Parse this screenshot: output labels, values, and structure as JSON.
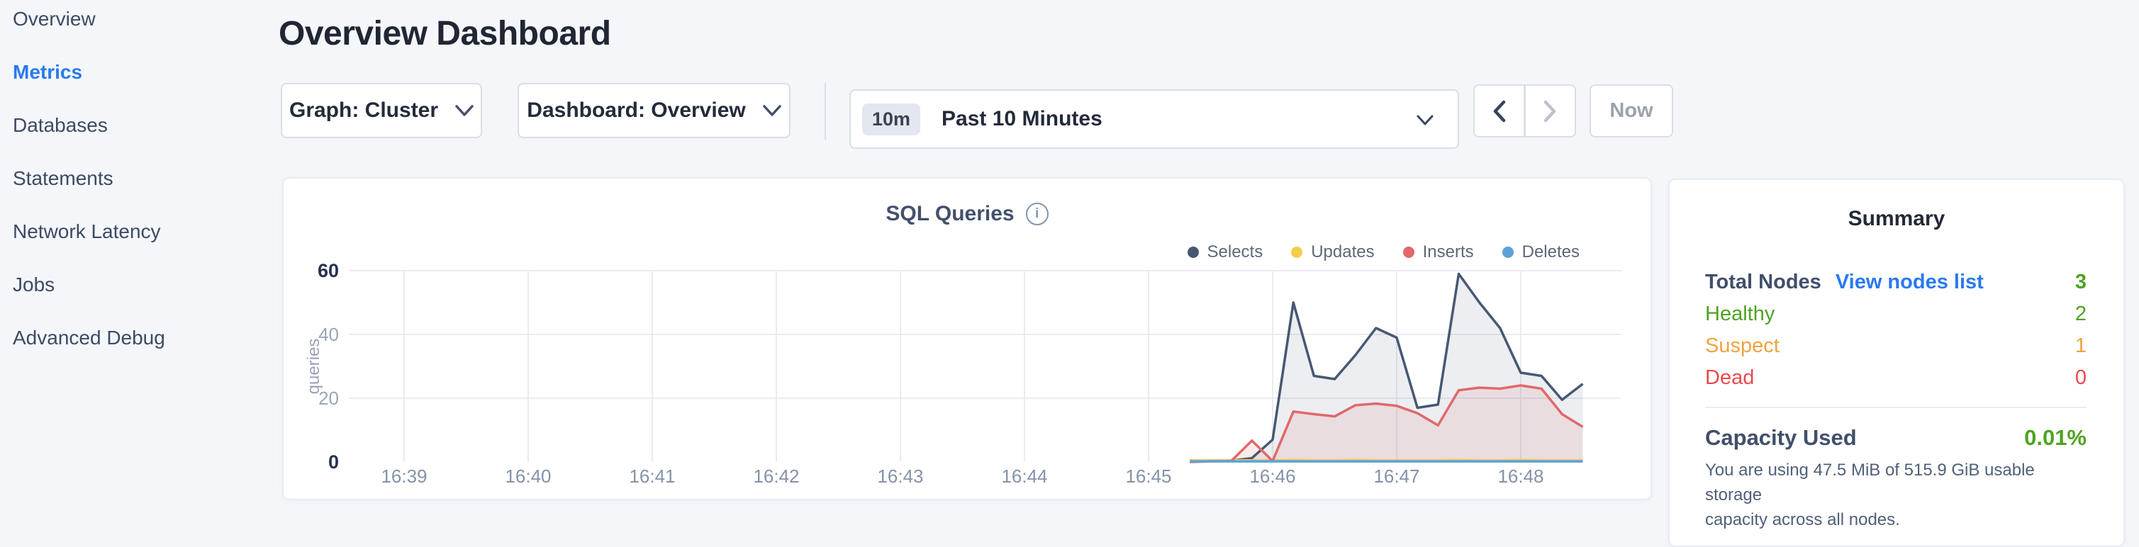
{
  "sidebar": {
    "items": [
      {
        "label": "Overview",
        "active": false
      },
      {
        "label": "Metrics",
        "active": true
      },
      {
        "label": "Databases",
        "active": false
      },
      {
        "label": "Statements",
        "active": false
      },
      {
        "label": "Network Latency",
        "active": false
      },
      {
        "label": "Jobs",
        "active": false
      },
      {
        "label": "Advanced Debug",
        "active": false
      }
    ]
  },
  "header": {
    "title": "Overview Dashboard"
  },
  "toolbar": {
    "graph_dropdown": {
      "label": "Graph: Cluster"
    },
    "dashboard_dropdown": {
      "label": "Dashboard: Overview"
    },
    "time_selector": {
      "badge": "10m",
      "label": "Past 10 Minutes"
    },
    "now_label": "Now"
  },
  "icons": {
    "dropdown": "chevron-down",
    "prev": "chevron-left",
    "next": "chevron-right",
    "info_glyph": "i"
  },
  "chart_data": {
    "type": "area",
    "title": "SQL Queries",
    "ylabel": "queries",
    "ylim": [
      0,
      60
    ],
    "y_ticks": [
      0,
      20,
      40,
      60
    ],
    "grid": true,
    "legend_position": "top-right",
    "x_ticks": [
      {
        "minute": 39,
        "label": "16:39"
      },
      {
        "minute": 40,
        "label": "16:40"
      },
      {
        "minute": 41,
        "label": "16:41"
      },
      {
        "minute": 42,
        "label": "16:42"
      },
      {
        "minute": 43,
        "label": "16:43"
      },
      {
        "minute": 44,
        "label": "16:44"
      },
      {
        "minute": 45,
        "label": "16:45"
      },
      {
        "minute": 46,
        "label": "16:46"
      },
      {
        "minute": 47,
        "label": "16:47"
      },
      {
        "minute": 48,
        "label": "16:48"
      }
    ],
    "x_minutes": [
      45.333,
      45.5,
      45.667,
      45.833,
      46,
      46.167,
      46.333,
      46.5,
      46.667,
      46.833,
      47,
      47.167,
      47.333,
      47.5,
      47.667,
      47.833,
      48,
      48.167,
      48.333,
      48.5
    ],
    "series": [
      {
        "name": "Selects",
        "color": "#475872",
        "fill": "rgba(71,88,114,0.10)",
        "values": [
          0.3,
          0.3,
          0.4,
          1.2,
          7,
          50,
          27,
          26,
          33.5,
          42,
          39,
          17,
          18,
          59,
          50,
          42,
          28,
          27,
          19.5,
          24.5
        ]
      },
      {
        "name": "Updates",
        "color": "#f3cd4b",
        "fill": "none",
        "values": [
          0.5,
          0.5,
          0.5,
          0.5,
          0.5,
          0.6,
          0.5,
          0.5,
          0.6,
          0.5,
          0.5,
          0.5,
          0.5,
          0.6,
          0.5,
          0.5,
          0.6,
          0.5,
          0.5,
          0.5
        ]
      },
      {
        "name": "Inserts",
        "color": "#e0696b",
        "fill": "rgba(224,105,107,0.13)",
        "values": [
          0,
          0.2,
          0.3,
          6.7,
          0.3,
          15.8,
          15,
          14.3,
          17.8,
          18.3,
          17.6,
          15.3,
          11.5,
          22.5,
          23.3,
          23,
          24,
          23,
          15,
          11
        ]
      },
      {
        "name": "Deletes",
        "color": "#5aa3d9",
        "fill": "none",
        "values": [
          0.2,
          0.2,
          0.2,
          0.2,
          0.2,
          0.2,
          0.2,
          0.2,
          0.2,
          0.2,
          0.2,
          0.2,
          0.2,
          0.2,
          0.2,
          0.2,
          0.2,
          0.2,
          0.2,
          0.2
        ]
      }
    ]
  },
  "summary": {
    "title": "Summary",
    "total_nodes": {
      "label": "Total Nodes",
      "link": "View nodes list",
      "value": "3",
      "color": "#4da321"
    },
    "statuses": [
      {
        "label": "Healthy",
        "value": "2",
        "color": "#4da321"
      },
      {
        "label": "Suspect",
        "value": "1",
        "color": "#f0a33f"
      },
      {
        "label": "Dead",
        "value": "0",
        "color": "#e8494b"
      }
    ],
    "capacity": {
      "label": "Capacity Used",
      "value": "0.01%",
      "color": "#4da321",
      "description_lines": [
        "You are using 47.5 MiB of 515.9 GiB usable storage",
        "capacity across all nodes."
      ]
    }
  },
  "colors": {
    "accent_blue": "#2979f0",
    "healthy_green": "#4da321",
    "suspect_orange": "#f0a33f",
    "dead_red": "#e8494b",
    "background": "#f4f6fa",
    "gridline": "#e9ecf2"
  }
}
